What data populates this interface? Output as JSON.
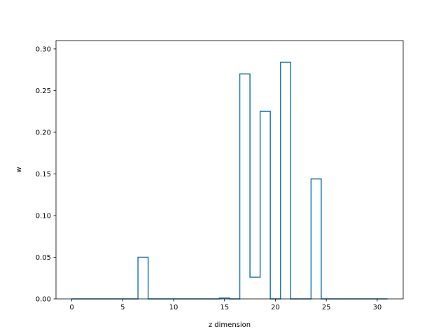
{
  "chart_data": {
    "type": "line",
    "drawstyle": "steps-mid",
    "title": "",
    "xlabel": "z dimension",
    "ylabel": "w",
    "xlim": [
      -1.55,
      32.55
    ],
    "ylim": [
      0,
      0.31
    ],
    "xticks": [
      0,
      5,
      10,
      15,
      20,
      25,
      30
    ],
    "yticks": [
      0.0,
      0.05,
      0.1,
      0.15,
      0.2,
      0.25,
      0.3
    ],
    "ytick_labels": [
      "0.00",
      "0.05",
      "0.10",
      "0.15",
      "0.20",
      "0.25",
      "0.30"
    ],
    "grid": false,
    "line_color": "#1f77b4",
    "series": [
      {
        "x": [
          0,
          1,
          2,
          3,
          4,
          5,
          6,
          7,
          8,
          9,
          10,
          11,
          12,
          13,
          14,
          15,
          16,
          17,
          18,
          19,
          20,
          21,
          22,
          23,
          24,
          25,
          26,
          27,
          28,
          29,
          30,
          31
        ],
        "values": [
          0,
          0,
          0,
          0,
          0,
          0,
          0,
          0.05,
          0,
          0,
          0,
          0,
          0,
          0,
          0,
          0.001,
          0,
          0.27,
          0.026,
          0.225,
          0,
          0.284,
          0,
          0,
          0.144,
          0,
          0,
          0,
          0,
          0,
          0,
          0
        ]
      }
    ]
  }
}
